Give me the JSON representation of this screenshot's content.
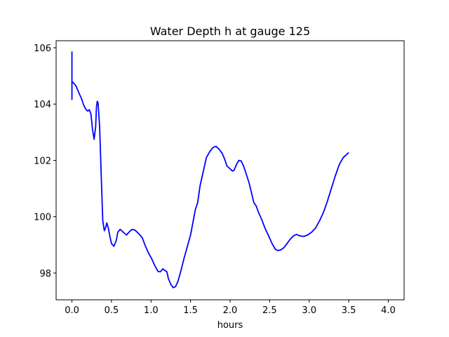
{
  "chart_data": {
    "type": "line",
    "title": "Water Depth h at gauge 125",
    "xlabel": "hours",
    "ylabel": "",
    "xlim": [
      -0.2,
      4.2
    ],
    "ylim": [
      97.05,
      106.25
    ],
    "x_ticks": [
      0.0,
      0.5,
      1.0,
      1.5,
      2.0,
      2.5,
      3.0,
      3.5,
      4.0
    ],
    "x_tick_labels": [
      "0.0",
      "0.5",
      "1.0",
      "1.5",
      "2.0",
      "2.5",
      "3.0",
      "3.5",
      "4.0"
    ],
    "y_ticks": [
      98,
      100,
      102,
      104,
      106
    ],
    "y_tick_labels": [
      "98",
      "100",
      "102",
      "104",
      "106"
    ],
    "grid": false,
    "legend": "none",
    "series": [
      {
        "color": "#0000ff",
        "points": [
          [
            0.0,
            104.15
          ],
          [
            0.0,
            105.85
          ],
          [
            0.0,
            104.8
          ],
          [
            0.02,
            104.75
          ],
          [
            0.05,
            104.65
          ],
          [
            0.08,
            104.45
          ],
          [
            0.12,
            104.2
          ],
          [
            0.15,
            103.95
          ],
          [
            0.18,
            103.8
          ],
          [
            0.2,
            103.75
          ],
          [
            0.22,
            103.8
          ],
          [
            0.24,
            103.65
          ],
          [
            0.26,
            103.1
          ],
          [
            0.28,
            102.75
          ],
          [
            0.3,
            103.2
          ],
          [
            0.31,
            103.9
          ],
          [
            0.32,
            104.1
          ],
          [
            0.33,
            104.05
          ],
          [
            0.35,
            103.2
          ],
          [
            0.37,
            101.5
          ],
          [
            0.39,
            99.85
          ],
          [
            0.41,
            99.5
          ],
          [
            0.43,
            99.65
          ],
          [
            0.44,
            99.78
          ],
          [
            0.46,
            99.6
          ],
          [
            0.48,
            99.3
          ],
          [
            0.5,
            99.05
          ],
          [
            0.53,
            98.95
          ],
          [
            0.56,
            99.15
          ],
          [
            0.58,
            99.45
          ],
          [
            0.61,
            99.55
          ],
          [
            0.65,
            99.45
          ],
          [
            0.69,
            99.35
          ],
          [
            0.72,
            99.45
          ],
          [
            0.76,
            99.55
          ],
          [
            0.8,
            99.52
          ],
          [
            0.85,
            99.38
          ],
          [
            0.89,
            99.25
          ],
          [
            0.93,
            98.95
          ],
          [
            0.97,
            98.7
          ],
          [
            1.01,
            98.5
          ],
          [
            1.05,
            98.25
          ],
          [
            1.09,
            98.05
          ],
          [
            1.12,
            98.05
          ],
          [
            1.15,
            98.15
          ],
          [
            1.18,
            98.08
          ],
          [
            1.2,
            98.05
          ],
          [
            1.22,
            97.8
          ],
          [
            1.25,
            97.6
          ],
          [
            1.28,
            97.48
          ],
          [
            1.31,
            97.52
          ],
          [
            1.34,
            97.7
          ],
          [
            1.38,
            98.1
          ],
          [
            1.42,
            98.55
          ],
          [
            1.46,
            98.95
          ],
          [
            1.5,
            99.35
          ],
          [
            1.53,
            99.8
          ],
          [
            1.56,
            100.25
          ],
          [
            1.59,
            100.5
          ],
          [
            1.62,
            101.1
          ],
          [
            1.66,
            101.6
          ],
          [
            1.7,
            102.1
          ],
          [
            1.74,
            102.3
          ],
          [
            1.78,
            102.45
          ],
          [
            1.82,
            102.5
          ],
          [
            1.86,
            102.4
          ],
          [
            1.9,
            102.25
          ],
          [
            1.93,
            102.05
          ],
          [
            1.96,
            101.8
          ],
          [
            2.0,
            101.7
          ],
          [
            2.03,
            101.62
          ],
          [
            2.05,
            101.65
          ],
          [
            2.08,
            101.85
          ],
          [
            2.11,
            102.0
          ],
          [
            2.14,
            101.98
          ],
          [
            2.17,
            101.8
          ],
          [
            2.2,
            101.55
          ],
          [
            2.24,
            101.2
          ],
          [
            2.27,
            100.85
          ],
          [
            2.3,
            100.5
          ],
          [
            2.33,
            100.38
          ],
          [
            2.36,
            100.15
          ],
          [
            2.4,
            99.9
          ],
          [
            2.44,
            99.6
          ],
          [
            2.49,
            99.3
          ],
          [
            2.53,
            99.05
          ],
          [
            2.57,
            98.85
          ],
          [
            2.6,
            98.8
          ],
          [
            2.64,
            98.82
          ],
          [
            2.68,
            98.9
          ],
          [
            2.72,
            99.05
          ],
          [
            2.76,
            99.2
          ],
          [
            2.8,
            99.32
          ],
          [
            2.84,
            99.37
          ],
          [
            2.88,
            99.32
          ],
          [
            2.93,
            99.3
          ],
          [
            2.98,
            99.35
          ],
          [
            3.03,
            99.45
          ],
          [
            3.08,
            99.6
          ],
          [
            3.13,
            99.85
          ],
          [
            3.18,
            100.15
          ],
          [
            3.23,
            100.55
          ],
          [
            3.28,
            101.0
          ],
          [
            3.33,
            101.45
          ],
          [
            3.38,
            101.85
          ],
          [
            3.43,
            102.1
          ],
          [
            3.47,
            102.2
          ],
          [
            3.5,
            102.28
          ]
        ]
      }
    ]
  }
}
